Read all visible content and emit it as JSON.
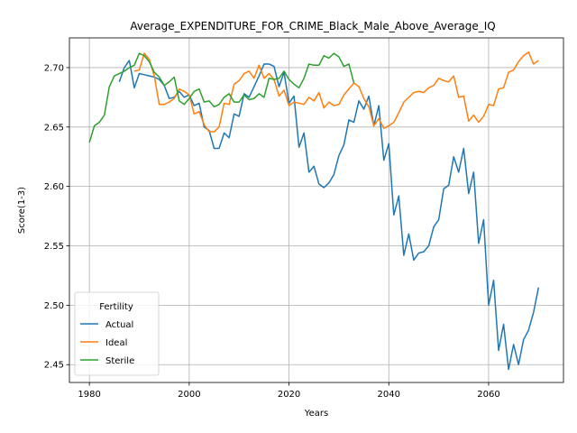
{
  "chart_data": {
    "type": "line",
    "title": "Average_EXPENDITURE_FOR_CRIME_Black_Male_Above_Average_IQ",
    "xlabel": "Years",
    "ylabel": "Score(1-3)",
    "xlim": [
      1976,
      2075
    ],
    "ylim": [
      2.435,
      2.725
    ],
    "xticks": [
      1980,
      2000,
      2020,
      2040,
      2060
    ],
    "yticks": [
      2.45,
      2.5,
      2.55,
      2.6,
      2.65,
      2.7
    ],
    "ytick_labels": [
      "2.45",
      "2.50",
      "2.55",
      "2.60",
      "2.65",
      "2.70"
    ],
    "grid": true,
    "legend": {
      "title": "Fertility",
      "position": "lower-left"
    },
    "series": [
      {
        "name": "Actual",
        "color": "#1f77b4",
        "points": [
          [
            1986,
            2.688
          ],
          [
            1987,
            2.7
          ],
          [
            1988,
            2.706
          ],
          [
            1989,
            2.683
          ],
          [
            1990,
            2.695
          ],
          [
            1991,
            2.694
          ],
          [
            1992,
            2.693
          ],
          [
            1993,
            2.692
          ],
          [
            1994,
            2.69
          ],
          [
            1995,
            2.685
          ],
          [
            1996,
            2.674
          ],
          [
            1997,
            2.675
          ],
          [
            1998,
            2.68
          ],
          [
            1999,
            2.675
          ],
          [
            2000,
            2.677
          ],
          [
            2001,
            2.668
          ],
          [
            2002,
            2.67
          ],
          [
            2003,
            2.65
          ],
          [
            2004,
            2.647
          ],
          [
            2005,
            2.632
          ],
          [
            2006,
            2.632
          ],
          [
            2007,
            2.645
          ],
          [
            2008,
            2.641
          ],
          [
            2009,
            2.661
          ],
          [
            2010,
            2.659
          ],
          [
            2011,
            2.678
          ],
          [
            2012,
            2.675
          ],
          [
            2013,
            2.684
          ],
          [
            2014,
            2.693
          ],
          [
            2015,
            2.703
          ],
          [
            2016,
            2.703
          ],
          [
            2017,
            2.701
          ],
          [
            2018,
            2.684
          ],
          [
            2019,
            2.696
          ],
          [
            2020,
            2.67
          ],
          [
            2021,
            2.676
          ],
          [
            2022,
            2.633
          ],
          [
            2023,
            2.645
          ],
          [
            2024,
            2.612
          ],
          [
            2025,
            2.617
          ],
          [
            2026,
            2.602
          ],
          [
            2027,
            2.599
          ],
          [
            2028,
            2.603
          ],
          [
            2029,
            2.61
          ],
          [
            2030,
            2.626
          ],
          [
            2031,
            2.635
          ],
          [
            2032,
            2.656
          ],
          [
            2033,
            2.654
          ],
          [
            2034,
            2.672
          ],
          [
            2035,
            2.665
          ],
          [
            2036,
            2.676
          ],
          [
            2037,
            2.651
          ],
          [
            2038,
            2.668
          ],
          [
            2039,
            2.622
          ],
          [
            2040,
            2.636
          ],
          [
            2041,
            2.576
          ],
          [
            2042,
            2.592
          ],
          [
            2043,
            2.542
          ],
          [
            2044,
            2.56
          ],
          [
            2045,
            2.538
          ],
          [
            2046,
            2.544
          ],
          [
            2047,
            2.545
          ],
          [
            2048,
            2.55
          ],
          [
            2049,
            2.566
          ],
          [
            2050,
            2.572
          ],
          [
            2051,
            2.598
          ],
          [
            2052,
            2.601
          ],
          [
            2053,
            2.625
          ],
          [
            2054,
            2.612
          ],
          [
            2055,
            2.632
          ],
          [
            2056,
            2.594
          ],
          [
            2057,
            2.612
          ],
          [
            2058,
            2.552
          ],
          [
            2059,
            2.572
          ],
          [
            2060,
            2.5
          ],
          [
            2061,
            2.521
          ],
          [
            2062,
            2.462
          ],
          [
            2063,
            2.484
          ],
          [
            2064,
            2.446
          ],
          [
            2065,
            2.467
          ],
          [
            2066,
            2.45
          ],
          [
            2067,
            2.471
          ],
          [
            2068,
            2.479
          ],
          [
            2069,
            2.494
          ],
          [
            2070,
            2.515
          ]
        ]
      },
      {
        "name": "Ideal",
        "color": "#ff7f0e",
        "points": [
          [
            1989,
            2.697
          ],
          [
            1990,
            2.698
          ],
          [
            1991,
            2.712
          ],
          [
            1992,
            2.707
          ],
          [
            1993,
            2.693
          ],
          [
            1994,
            2.669
          ],
          [
            1995,
            2.669
          ],
          [
            1996,
            2.671
          ],
          [
            1997,
            2.674
          ],
          [
            1998,
            2.682
          ],
          [
            1999,
            2.68
          ],
          [
            2000,
            2.677
          ],
          [
            2001,
            2.661
          ],
          [
            2002,
            2.663
          ],
          [
            2003,
            2.652
          ],
          [
            2004,
            2.646
          ],
          [
            2005,
            2.646
          ],
          [
            2006,
            2.65
          ],
          [
            2007,
            2.67
          ],
          [
            2008,
            2.669
          ],
          [
            2009,
            2.686
          ],
          [
            2010,
            2.689
          ],
          [
            2011,
            2.695
          ],
          [
            2012,
            2.697
          ],
          [
            2013,
            2.691
          ],
          [
            2014,
            2.702
          ],
          [
            2015,
            2.691
          ],
          [
            2016,
            2.695
          ],
          [
            2017,
            2.69
          ],
          [
            2018,
            2.676
          ],
          [
            2019,
            2.681
          ],
          [
            2020,
            2.668
          ],
          [
            2021,
            2.671
          ],
          [
            2022,
            2.67
          ],
          [
            2023,
            2.669
          ],
          [
            2024,
            2.675
          ],
          [
            2025,
            2.672
          ],
          [
            2026,
            2.679
          ],
          [
            2027,
            2.666
          ],
          [
            2028,
            2.671
          ],
          [
            2029,
            2.668
          ],
          [
            2030,
            2.669
          ],
          [
            2031,
            2.677
          ],
          [
            2032,
            2.682
          ],
          [
            2033,
            2.687
          ],
          [
            2034,
            2.684
          ],
          [
            2035,
            2.674
          ],
          [
            2036,
            2.667
          ],
          [
            2037,
            2.651
          ],
          [
            2038,
            2.657
          ],
          [
            2039,
            2.649
          ],
          [
            2040,
            2.651
          ],
          [
            2041,
            2.654
          ],
          [
            2042,
            2.662
          ],
          [
            2043,
            2.671
          ],
          [
            2044,
            2.675
          ],
          [
            2045,
            2.679
          ],
          [
            2046,
            2.68
          ],
          [
            2047,
            2.679
          ],
          [
            2048,
            2.683
          ],
          [
            2049,
            2.685
          ],
          [
            2050,
            2.691
          ],
          [
            2051,
            2.689
          ],
          [
            2052,
            2.688
          ],
          [
            2053,
            2.693
          ],
          [
            2054,
            2.675
          ],
          [
            2055,
            2.676
          ],
          [
            2056,
            2.655
          ],
          [
            2057,
            2.66
          ],
          [
            2058,
            2.654
          ],
          [
            2059,
            2.659
          ],
          [
            2060,
            2.669
          ],
          [
            2061,
            2.668
          ],
          [
            2062,
            2.682
          ],
          [
            2063,
            2.683
          ],
          [
            2064,
            2.696
          ],
          [
            2065,
            2.698
          ],
          [
            2066,
            2.705
          ],
          [
            2067,
            2.71
          ],
          [
            2068,
            2.713
          ],
          [
            2069,
            2.703
          ],
          [
            2070,
            2.706
          ]
        ]
      },
      {
        "name": "Sterile",
        "color": "#2ca02c",
        "points": [
          [
            1980,
            2.637
          ],
          [
            1981,
            2.651
          ],
          [
            1982,
            2.654
          ],
          [
            1983,
            2.66
          ],
          [
            1984,
            2.684
          ],
          [
            1985,
            2.693
          ],
          [
            1986,
            2.695
          ],
          [
            1987,
            2.697
          ],
          [
            1988,
            2.7
          ],
          [
            1989,
            2.702
          ],
          [
            1990,
            2.712
          ],
          [
            1991,
            2.71
          ],
          [
            1992,
            2.705
          ],
          [
            1993,
            2.696
          ],
          [
            1994,
            2.692
          ],
          [
            1995,
            2.685
          ],
          [
            1996,
            2.688
          ],
          [
            1997,
            2.692
          ],
          [
            1998,
            2.672
          ],
          [
            1999,
            2.669
          ],
          [
            2000,
            2.674
          ],
          [
            2001,
            2.68
          ],
          [
            2002,
            2.682
          ],
          [
            2003,
            2.671
          ],
          [
            2004,
            2.672
          ],
          [
            2005,
            2.667
          ],
          [
            2006,
            2.669
          ],
          [
            2007,
            2.675
          ],
          [
            2008,
            2.678
          ],
          [
            2009,
            2.671
          ],
          [
            2010,
            2.671
          ],
          [
            2011,
            2.677
          ],
          [
            2012,
            2.673
          ],
          [
            2013,
            2.674
          ],
          [
            2014,
            2.678
          ],
          [
            2015,
            2.675
          ],
          [
            2016,
            2.691
          ],
          [
            2017,
            2.69
          ],
          [
            2018,
            2.691
          ],
          [
            2019,
            2.697
          ],
          [
            2020,
            2.69
          ],
          [
            2021,
            2.686
          ],
          [
            2022,
            2.683
          ],
          [
            2023,
            2.691
          ],
          [
            2024,
            2.703
          ],
          [
            2025,
            2.702
          ],
          [
            2026,
            2.702
          ],
          [
            2027,
            2.71
          ],
          [
            2028,
            2.708
          ],
          [
            2029,
            2.712
          ],
          [
            2030,
            2.709
          ],
          [
            2031,
            2.701
          ],
          [
            2032,
            2.703
          ],
          [
            2033,
            2.687
          ]
        ]
      }
    ]
  }
}
